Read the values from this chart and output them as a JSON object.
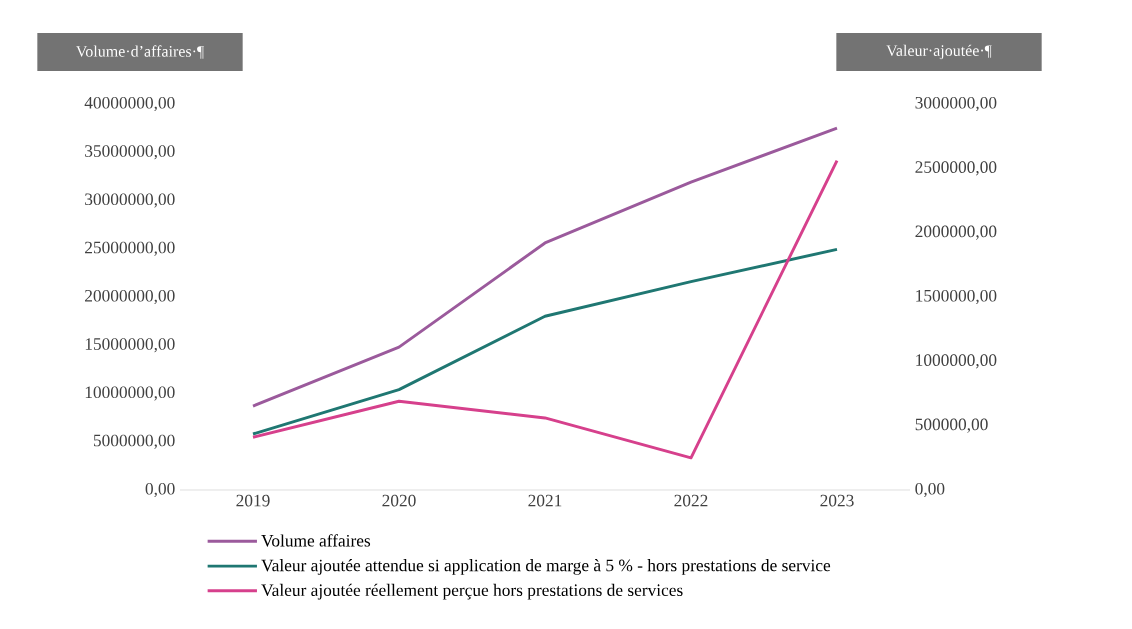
{
  "chart_data": {
    "type": "line",
    "ylabel": "Volume·d’affaires·¶",
    "y2label": "Valeur·ajoutée·¶",
    "categories": [
      "2019",
      "2020",
      "2021",
      "2022",
      "2023"
    ],
    "series": [
      {
        "name": "Volume affaires",
        "color": "#9b5a9c",
        "values": [
          8700000,
          14800000,
          25600000,
          31900000,
          37500000
        ]
      },
      {
        "name": "Valeur ajoutée attendue si application de marge à 5 % - hors prestations de service",
        "color": "#1f7772",
        "axis": "y2",
        "values": [
          435000,
          780000,
          1350000,
          1620000,
          1870000
        ]
      },
      {
        "name": "Valeur ajoutée réellement perçue hors prestations de services",
        "color": "#d6408c",
        "axis": "y2",
        "values": [
          410000,
          690000,
          560000,
          250000,
          2560000
        ]
      }
    ],
    "ylim": [
      0,
      40000000
    ],
    "yticks": [
      {
        "value": 0,
        "label": "0,00"
      },
      {
        "value": 5000000,
        "label": "5000000,00"
      },
      {
        "value": 10000000,
        "label": "10000000,00"
      },
      {
        "value": 15000000,
        "label": "15000000,00"
      },
      {
        "value": 20000000,
        "label": "20000000,00"
      },
      {
        "value": 25000000,
        "label": "25000000,00"
      },
      {
        "value": 30000000,
        "label": "30000000,00"
      },
      {
        "value": 35000000,
        "label": "35000000,00"
      },
      {
        "value": 40000000,
        "label": "40000000,00"
      }
    ],
    "y2lim": [
      0,
      3000000
    ],
    "y2ticks": [
      {
        "value": 0,
        "label": "0,00"
      },
      {
        "value": 500000,
        "label": "500000,00"
      },
      {
        "value": 1000000,
        "label": "1000000,00"
      },
      {
        "value": 1500000,
        "label": "1500000,00"
      },
      {
        "value": 2000000,
        "label": "2000000,00"
      },
      {
        "value": 2500000,
        "label": "2500000,00"
      },
      {
        "value": 3000000,
        "label": "3000000,00"
      }
    ],
    "legend": "bottom left"
  }
}
